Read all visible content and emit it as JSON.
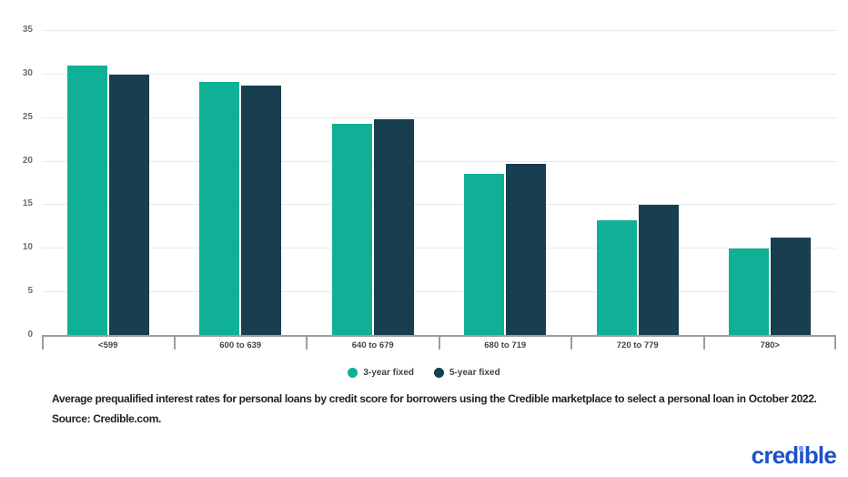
{
  "chart_data": {
    "type": "bar",
    "title": "",
    "xlabel": "",
    "ylabel": "",
    "categories": [
      "<599",
      "600 to 639",
      "640 to 679",
      "680 to 719",
      "720 to 779",
      "780>"
    ],
    "series": [
      {
        "name": "3-year fixed",
        "color": "#10b096",
        "values": [
          30.9,
          29.0,
          24.2,
          18.5,
          13.2,
          9.9
        ]
      },
      {
        "name": "5-year fixed",
        "color": "#173f4f",
        "values": [
          29.9,
          28.6,
          24.8,
          19.6,
          14.9,
          11.2
        ]
      }
    ],
    "ylim": [
      0,
      35
    ],
    "yticks": [
      0,
      5,
      10,
      15,
      20,
      25,
      30,
      35
    ],
    "grid": true,
    "legend_position": "bottom"
  },
  "caption": {
    "text": "Average prequalified interest rates for personal loans by credit score for borrowers using the Credible marketplace to select a personal loan in October 2022. Source: Credible.com."
  },
  "logo": {
    "text": "credible",
    "prefix": "cred",
    "dotless_i": "ı",
    "suffix": "ble",
    "text_color": "#1d51c8",
    "dot_color": "#7aa0e6"
  },
  "colors": {
    "series_teal": "#10b096",
    "series_navy": "#173f4f",
    "gridline": "#e9eaec",
    "axis_line": "#9b9ea0",
    "y_tick_text": "#6a6e71",
    "category_text": "#3f4447",
    "caption_text": "#1e2124"
  }
}
